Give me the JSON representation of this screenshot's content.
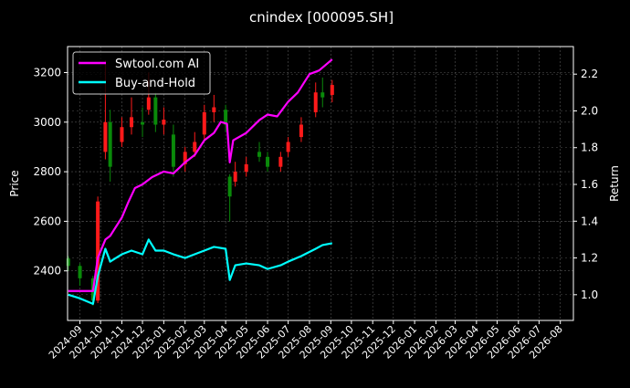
{
  "chart_data": {
    "type": "line",
    "title": "cnindex [000095.SH]",
    "ylabel": "Price",
    "ylabel_right": "Return",
    "xlim": [
      "2024-08-14",
      "2026-08-20"
    ],
    "ylim": [
      2200,
      3305
    ],
    "ylim_right": [
      0.86,
      2.35
    ],
    "y_ticks": [
      "2400",
      "2600",
      "2800",
      "3000",
      "3200"
    ],
    "y_right_ticks": [
      "1.0",
      "1.2",
      "1.4",
      "1.6",
      "1.8",
      "2.0",
      "2.2"
    ],
    "x_ticks": [
      "2024-09",
      "2024-10",
      "2024-11",
      "2024-12",
      "2025-01",
      "2025-02",
      "2025-03",
      "2025-04",
      "2025-05",
      "2025-06",
      "2025-07",
      "2025-08",
      "2025-09",
      "2025-10",
      "2025-11",
      "2025-12",
      "2026-01",
      "2026-02",
      "2026-03",
      "2026-04",
      "2026-05",
      "2026-06",
      "2026-07",
      "2026-08"
    ],
    "grid": true,
    "legend_position": "top-left",
    "colors": {
      "up": "#ff1a1a",
      "down": "#0a8a0a",
      "strategy": "#ff00ff",
      "buyhold": "#00ffff",
      "grid": "#555555"
    },
    "candles": [
      [
        "2024-08-15",
        2450,
        2460,
        2400,
        2420
      ],
      [
        "2024-09-01",
        2420,
        2430,
        2340,
        2370
      ],
      [
        "2024-09-20",
        2370,
        2380,
        2260,
        2280
      ],
      [
        "2024-09-27",
        2280,
        2700,
        2270,
        2680
      ],
      [
        "2024-10-08",
        2880,
        3250,
        2850,
        3000
      ],
      [
        "2024-10-15",
        3000,
        3050,
        2760,
        2820
      ],
      [
        "2024-11-01",
        2920,
        3020,
        2900,
        2980
      ],
      [
        "2024-11-15",
        2980,
        3100,
        2950,
        3020
      ],
      [
        "2024-12-01",
        3000,
        3060,
        2940,
        2990
      ],
      [
        "2024-12-10",
        3050,
        3200,
        3030,
        3100
      ],
      [
        "2024-12-20",
        3100,
        3120,
        2960,
        2990
      ],
      [
        "2025-01-01",
        2990,
        3060,
        2950,
        3010
      ],
      [
        "2025-01-15",
        2950,
        2990,
        2780,
        2820
      ],
      [
        "2025-02-01",
        2830,
        2900,
        2800,
        2880
      ],
      [
        "2025-02-15",
        2880,
        2960,
        2860,
        2920
      ],
      [
        "2025-03-01",
        2950,
        3070,
        2930,
        3040
      ],
      [
        "2025-03-15",
        3040,
        3110,
        3000,
        3060
      ],
      [
        "2025-04-01",
        3050,
        3070,
        2960,
        2990
      ],
      [
        "2025-04-07",
        2780,
        2790,
        2600,
        2700
      ],
      [
        "2025-04-15",
        2760,
        2840,
        2740,
        2800
      ],
      [
        "2025-05-01",
        2800,
        2860,
        2780,
        2830
      ],
      [
        "2025-05-20",
        2880,
        2920,
        2840,
        2860
      ],
      [
        "2025-06-01",
        2860,
        2880,
        2800,
        2820
      ],
      [
        "2025-06-20",
        2820,
        2880,
        2800,
        2860
      ],
      [
        "2025-07-01",
        2880,
        2940,
        2860,
        2920
      ],
      [
        "2025-07-20",
        2940,
        3020,
        2920,
        2990
      ],
      [
        "2025-08-10",
        3040,
        3160,
        3020,
        3120
      ],
      [
        "2025-08-20",
        3120,
        3180,
        3060,
        3100
      ],
      [
        "2025-09-03",
        3110,
        3170,
        3080,
        3150
      ]
    ],
    "series": [
      {
        "name": "Swtool.com AI",
        "axis": "right",
        "points": [
          [
            "2024-08-15",
            1.02
          ],
          [
            "2024-09-20",
            1.02
          ],
          [
            "2024-09-27",
            1.2
          ],
          [
            "2024-10-08",
            1.3
          ],
          [
            "2024-10-15",
            1.32
          ],
          [
            "2024-11-01",
            1.42
          ],
          [
            "2024-11-10",
            1.5
          ],
          [
            "2024-11-20",
            1.58
          ],
          [
            "2024-12-01",
            1.6
          ],
          [
            "2024-12-15",
            1.64
          ],
          [
            "2025-01-01",
            1.67
          ],
          [
            "2025-01-15",
            1.66
          ],
          [
            "2025-02-01",
            1.72
          ],
          [
            "2025-02-15",
            1.76
          ],
          [
            "2025-03-01",
            1.84
          ],
          [
            "2025-03-15",
            1.88
          ],
          [
            "2025-03-25",
            1.94
          ],
          [
            "2025-04-03",
            1.93
          ],
          [
            "2025-04-07",
            1.72
          ],
          [
            "2025-04-12",
            1.84
          ],
          [
            "2025-05-01",
            1.88
          ],
          [
            "2025-05-20",
            1.95
          ],
          [
            "2025-06-01",
            1.98
          ],
          [
            "2025-06-15",
            1.97
          ],
          [
            "2025-07-01",
            2.05
          ],
          [
            "2025-07-15",
            2.1
          ],
          [
            "2025-08-01",
            2.2
          ],
          [
            "2025-08-15",
            2.22
          ],
          [
            "2025-09-03",
            2.28
          ]
        ]
      },
      {
        "name": "Buy-and-Hold",
        "axis": "right",
        "points": [
          [
            "2024-08-15",
            1.0
          ],
          [
            "2024-09-01",
            0.98
          ],
          [
            "2024-09-20",
            0.95
          ],
          [
            "2024-09-27",
            1.1
          ],
          [
            "2024-10-08",
            1.25
          ],
          [
            "2024-10-15",
            1.18
          ],
          [
            "2024-11-01",
            1.22
          ],
          [
            "2024-11-15",
            1.24
          ],
          [
            "2024-12-01",
            1.22
          ],
          [
            "2024-12-10",
            1.3
          ],
          [
            "2024-12-20",
            1.24
          ],
          [
            "2025-01-01",
            1.24
          ],
          [
            "2025-01-15",
            1.22
          ],
          [
            "2025-02-01",
            1.2
          ],
          [
            "2025-02-15",
            1.22
          ],
          [
            "2025-03-01",
            1.24
          ],
          [
            "2025-03-15",
            1.26
          ],
          [
            "2025-04-01",
            1.25
          ],
          [
            "2025-04-07",
            1.08
          ],
          [
            "2025-04-15",
            1.16
          ],
          [
            "2025-05-01",
            1.17
          ],
          [
            "2025-05-20",
            1.16
          ],
          [
            "2025-06-01",
            1.14
          ],
          [
            "2025-06-20",
            1.16
          ],
          [
            "2025-07-01",
            1.18
          ],
          [
            "2025-07-20",
            1.21
          ],
          [
            "2025-08-10",
            1.25
          ],
          [
            "2025-08-20",
            1.27
          ],
          [
            "2025-09-03",
            1.28
          ]
        ]
      }
    ]
  }
}
